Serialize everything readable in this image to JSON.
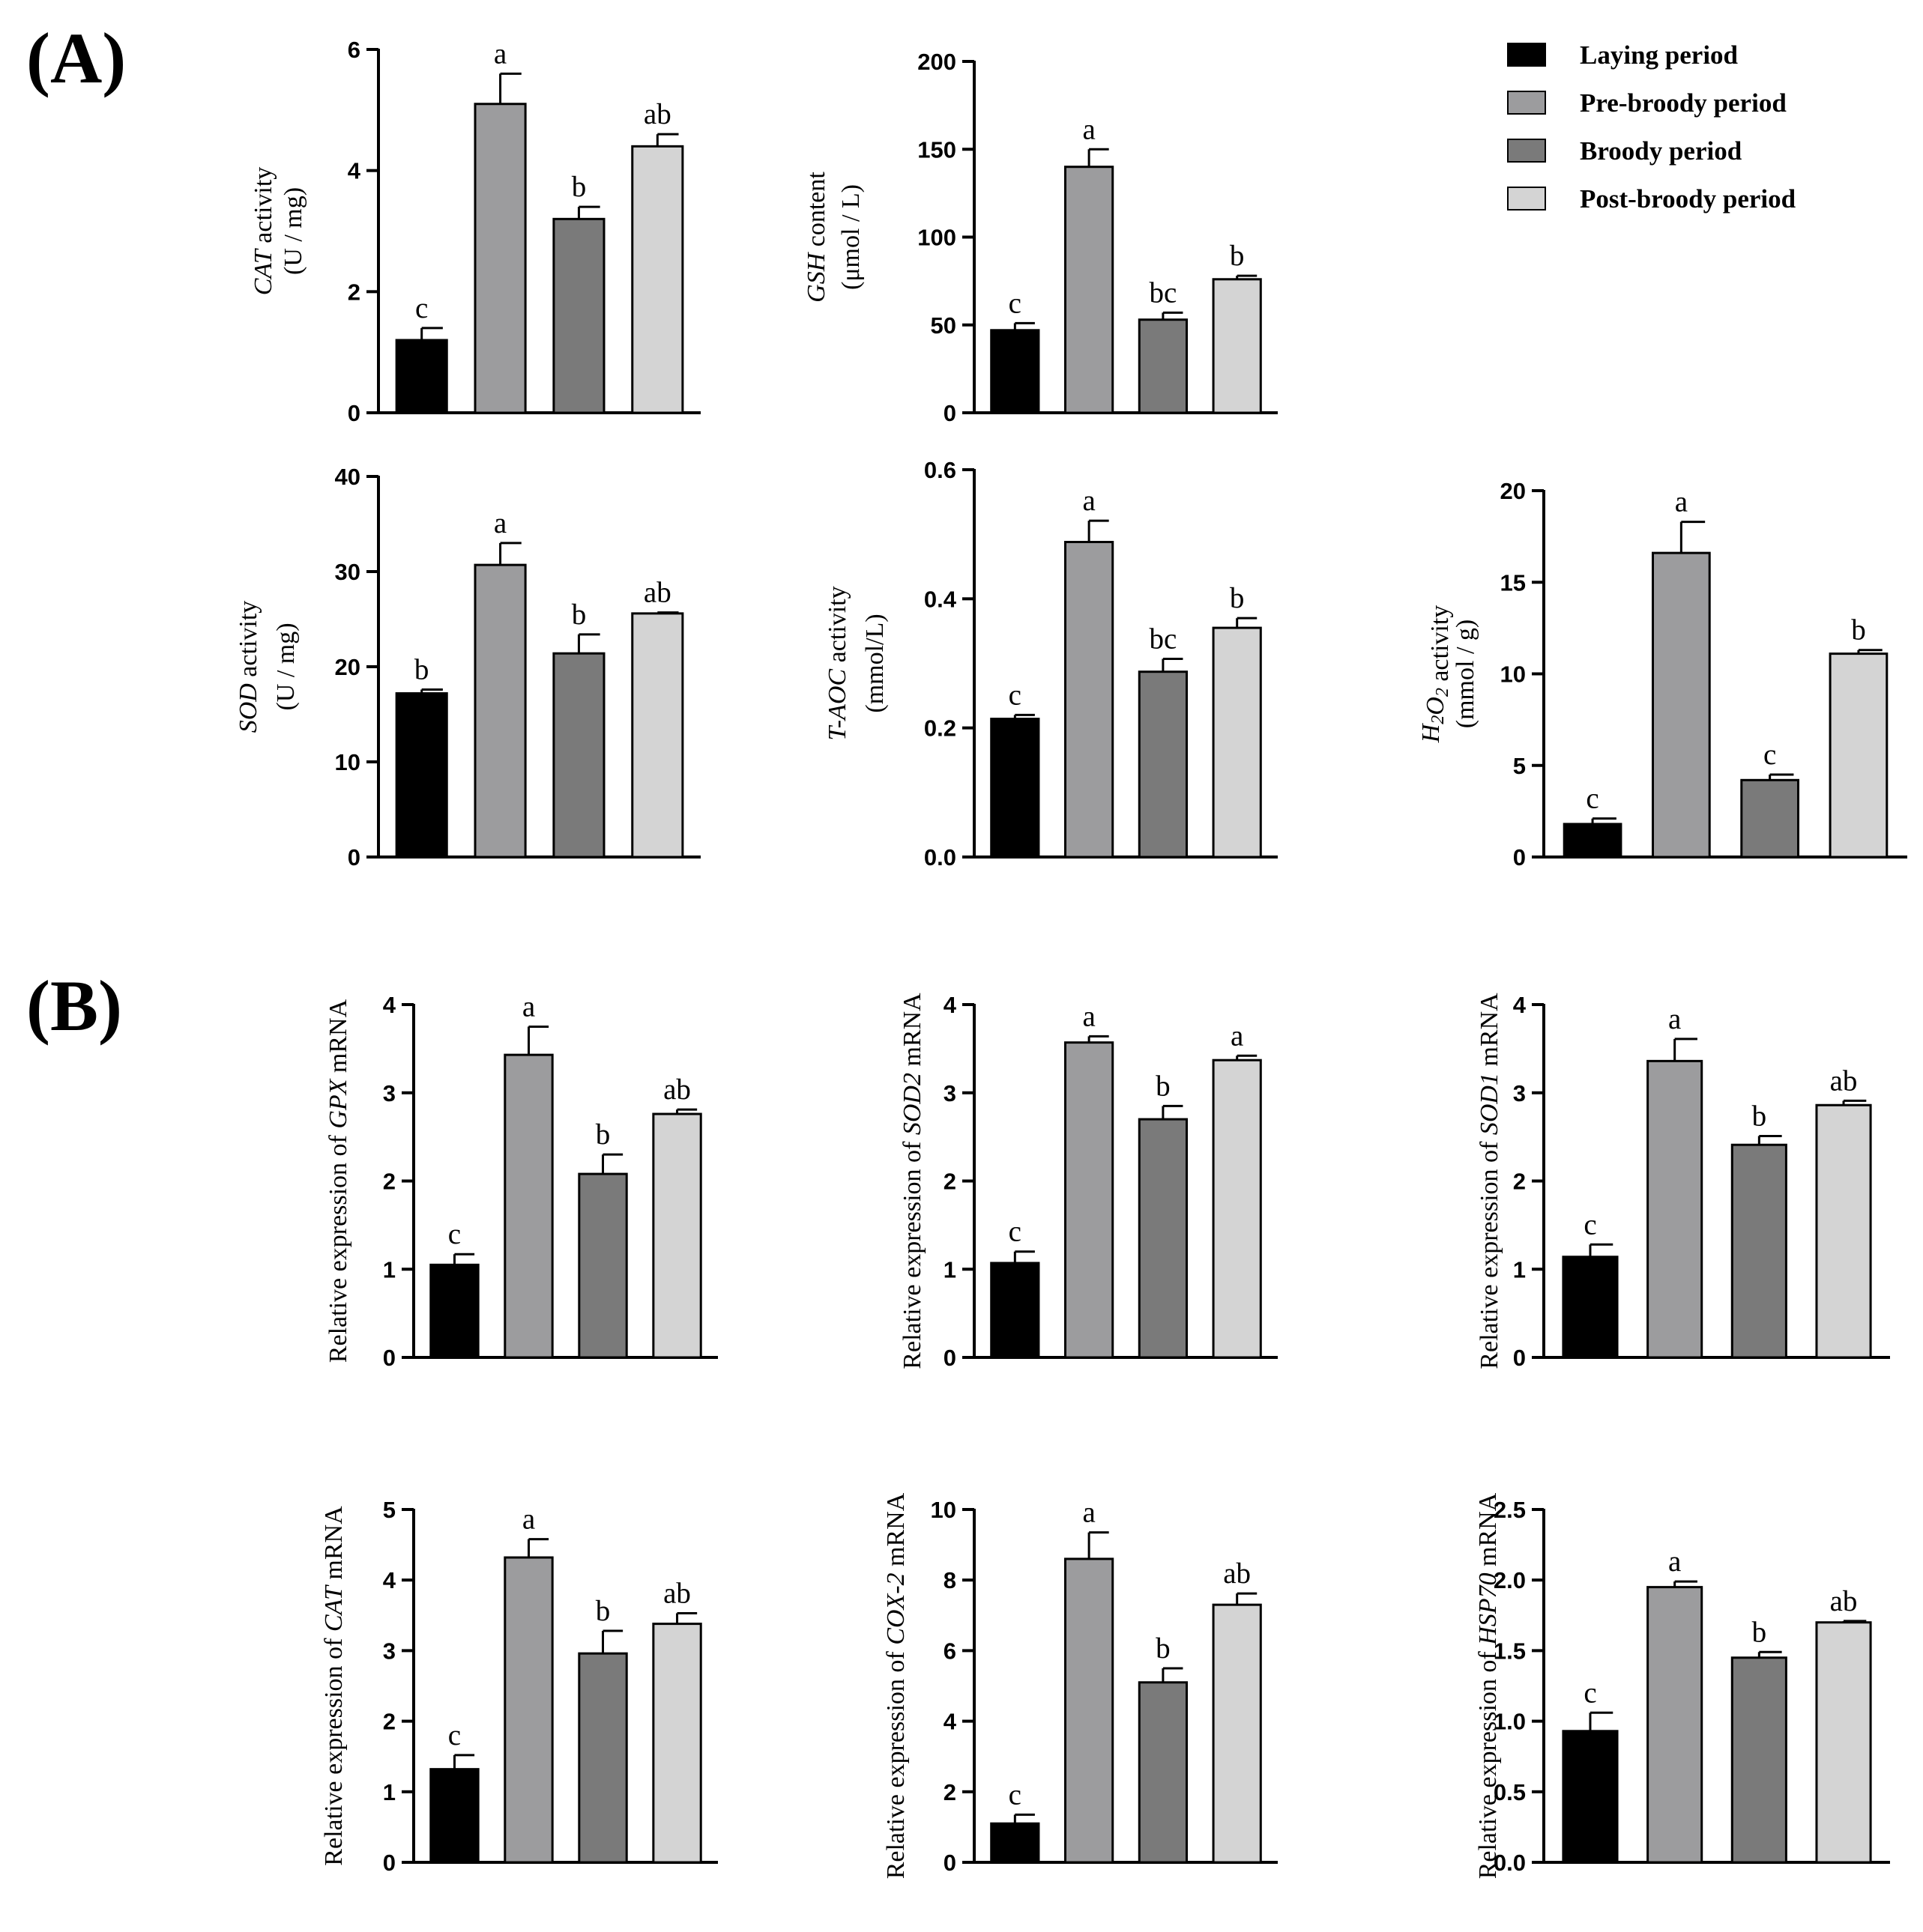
{
  "panel_labels": [
    "(A)",
    "(B)"
  ],
  "legend": [
    {
      "label": "Laying period",
      "color": "#000000"
    },
    {
      "label": "Pre-broody period",
      "color": "#9c9c9e"
    },
    {
      "label": "Broody period",
      "color": "#7a7a7a"
    },
    {
      "label": "Post-broody period",
      "color": "#d4d4d4"
    }
  ],
  "chart_data": [
    {
      "type": "bar",
      "id": "cat-activity",
      "categories": [
        "Laying period",
        "Pre-broody period",
        "Broody period",
        "Post-broody period"
      ],
      "ylabel": [
        {
          "t": "CAT",
          "it": true
        },
        {
          "t": " activity",
          "it": false
        }
      ],
      "ylabel2": "(U / mg)",
      "ylim": [
        0,
        6
      ],
      "ticks": [
        "0",
        "2",
        "4",
        "6"
      ],
      "values": [
        1.2,
        5.1,
        3.2,
        4.4
      ],
      "errors": [
        0.2,
        0.5,
        0.2,
        0.2
      ],
      "sig": [
        "c",
        "a",
        "b",
        "ab"
      ]
    },
    {
      "type": "bar",
      "id": "gsh-content",
      "categories": [
        "Laying period",
        "Pre-broody period",
        "Broody period",
        "Post-broody period"
      ],
      "ylabel": [
        {
          "t": "GSH",
          "it": true
        },
        {
          "t": " content",
          "it": false
        }
      ],
      "ylabel2": "(μmol / L)",
      "ylim": [
        0,
        200
      ],
      "ticks": [
        "0",
        "50",
        "100",
        "150",
        "200"
      ],
      "values": [
        47,
        140,
        53,
        76
      ],
      "errors": [
        4,
        10,
        4,
        2
      ],
      "sig": [
        "c",
        "a",
        "bc",
        "b"
      ]
    },
    {
      "type": "bar",
      "id": "sod-activity",
      "categories": [
        "Laying period",
        "Pre-broody period",
        "Broody period",
        "Post-broody period"
      ],
      "ylabel": [
        {
          "t": "SOD",
          "it": true
        },
        {
          "t": " activity",
          "it": false
        }
      ],
      "ylabel2": "(U / mg)",
      "ylim": [
        0,
        40
      ],
      "ticks": [
        "0",
        "10",
        "20",
        "30",
        "40"
      ],
      "values": [
        17.2,
        30.7,
        21.4,
        25.6
      ],
      "errors": [
        0.4,
        2.3,
        2.0,
        0.1
      ],
      "sig": [
        "b",
        "a",
        "b",
        "ab"
      ]
    },
    {
      "type": "bar",
      "id": "taoc-activity",
      "categories": [
        "Laying period",
        "Pre-broody period",
        "Broody period",
        "Post-broody period"
      ],
      "ylabel": [
        {
          "t": "T-AOC",
          "it": true
        },
        {
          "t": " activity",
          "it": false
        }
      ],
      "ylabel2": "(mmol/L)",
      "ylim": [
        0,
        0.6
      ],
      "ticks": [
        "0.0",
        "0.2",
        "0.4",
        "0.6"
      ],
      "values": [
        0.214,
        0.488,
        0.287,
        0.355
      ],
      "errors": [
        0.006,
        0.033,
        0.02,
        0.015
      ],
      "sig": [
        "c",
        "a",
        "bc",
        "b"
      ]
    },
    {
      "type": "bar",
      "id": "h2o2-activity",
      "categories": [
        "Laying period",
        "Pre-broody period",
        "Broody period",
        "Post-broody period"
      ],
      "ylabel": [
        {
          "t": "H",
          "it": true
        },
        {
          "t": "2",
          "it": true,
          "sub": true
        },
        {
          "t": "O",
          "it": true
        },
        {
          "t": "2",
          "it": true,
          "sub": true
        },
        {
          "t": "  activity",
          "it": false
        }
      ],
      "ylabel2": "(mmol / g)",
      "ylim": [
        0,
        20
      ],
      "ticks": [
        "0",
        "5",
        "10",
        "15",
        "20"
      ],
      "values": [
        1.8,
        16.6,
        4.2,
        11.1
      ],
      "errors": [
        0.3,
        1.7,
        0.3,
        0.2
      ],
      "sig": [
        "c",
        "a",
        "c",
        "b"
      ]
    },
    {
      "type": "bar",
      "id": "gpx-mrna",
      "categories": [
        "Laying period",
        "Pre-broody period",
        "Broody period",
        "Post-broody period"
      ],
      "ylabel": [
        {
          "t": "Relative expression of ",
          "it": false
        },
        {
          "t": "GPX",
          "it": true
        },
        {
          "t": " mRNA",
          "it": false
        }
      ],
      "ylim": [
        0,
        4
      ],
      "ticks": [
        "0",
        "1",
        "2",
        "3",
        "4"
      ],
      "values": [
        1.05,
        3.43,
        2.08,
        2.76
      ],
      "errors": [
        0.12,
        0.32,
        0.22,
        0.05
      ],
      "sig": [
        "c",
        "a",
        "b",
        "ab"
      ]
    },
    {
      "type": "bar",
      "id": "sod2-mrna",
      "categories": [
        "Laying period",
        "Pre-broody period",
        "Broody period",
        "Post-broody period"
      ],
      "ylabel": [
        {
          "t": "Relative expression of ",
          "it": false
        },
        {
          "t": "SOD2",
          "it": true
        },
        {
          "t": " mRNA",
          "it": false
        }
      ],
      "ylim": [
        0,
        4
      ],
      "ticks": [
        "0",
        "1",
        "2",
        "3",
        "4"
      ],
      "values": [
        1.07,
        3.57,
        2.7,
        3.37
      ],
      "errors": [
        0.13,
        0.07,
        0.15,
        0.05
      ],
      "sig": [
        "c",
        "a",
        "b",
        "a"
      ]
    },
    {
      "type": "bar",
      "id": "sod1-mrna",
      "categories": [
        "Laying period",
        "Pre-broody period",
        "Broody period",
        "Post-broody period"
      ],
      "ylabel": [
        {
          "t": "Relative expression of ",
          "it": false
        },
        {
          "t": "SOD1",
          "it": true
        },
        {
          "t": " mRNA",
          "it": false
        }
      ],
      "ylim": [
        0,
        4
      ],
      "ticks": [
        "0",
        "1",
        "2",
        "3",
        "4"
      ],
      "values": [
        1.14,
        3.36,
        2.41,
        2.86
      ],
      "errors": [
        0.14,
        0.25,
        0.1,
        0.05
      ],
      "sig": [
        "c",
        "a",
        "b",
        "ab"
      ]
    },
    {
      "type": "bar",
      "id": "cat-mrna",
      "categories": [
        "Laying period",
        "Pre-broody period",
        "Broody period",
        "Post-broody period"
      ],
      "ylabel": [
        {
          "t": "Relative expression of ",
          "it": false
        },
        {
          "t": "CAT",
          "it": true
        },
        {
          "t": " mRNA",
          "it": false
        }
      ],
      "ylim": [
        0,
        5
      ],
      "ticks": [
        "0",
        "1",
        "2",
        "3",
        "4",
        "5"
      ],
      "values": [
        1.32,
        4.32,
        2.96,
        3.38
      ],
      "errors": [
        0.2,
        0.26,
        0.32,
        0.15
      ],
      "sig": [
        "c",
        "a",
        "b",
        "ab"
      ]
    },
    {
      "type": "bar",
      "id": "cox2-mrna",
      "categories": [
        "Laying period",
        "Pre-broody period",
        "Broody period",
        "Post-broody period"
      ],
      "ylabel": [
        {
          "t": "Relative expression of ",
          "it": false
        },
        {
          "t": "COX-2",
          "it": true
        },
        {
          "t": " mRNA",
          "it": false
        }
      ],
      "ylim": [
        0,
        10
      ],
      "ticks": [
        "0",
        "2",
        "4",
        "6",
        "8",
        "10"
      ],
      "values": [
        1.1,
        8.6,
        5.1,
        7.3
      ],
      "errors": [
        0.25,
        0.75,
        0.4,
        0.32
      ],
      "sig": [
        "c",
        "a",
        "b",
        "ab"
      ]
    },
    {
      "type": "bar",
      "id": "hsp70-mrna",
      "categories": [
        "Laying period",
        "Pre-broody period",
        "Broody period",
        "Post-broody period"
      ],
      "ylabel": [
        {
          "t": "Relative expression of ",
          "it": false
        },
        {
          "t": "HSP70",
          "it": true
        },
        {
          "t": " mRNA",
          "it": false
        }
      ],
      "ylim": [
        0,
        2.5
      ],
      "ticks": [
        "0.0",
        "0.5",
        "1.0",
        "1.5",
        "2.0",
        "2.5"
      ],
      "values": [
        0.93,
        1.95,
        1.45,
        1.7
      ],
      "errors": [
        0.13,
        0.04,
        0.04,
        0.01
      ],
      "sig": [
        "c",
        "a",
        "b",
        "ab"
      ]
    }
  ]
}
